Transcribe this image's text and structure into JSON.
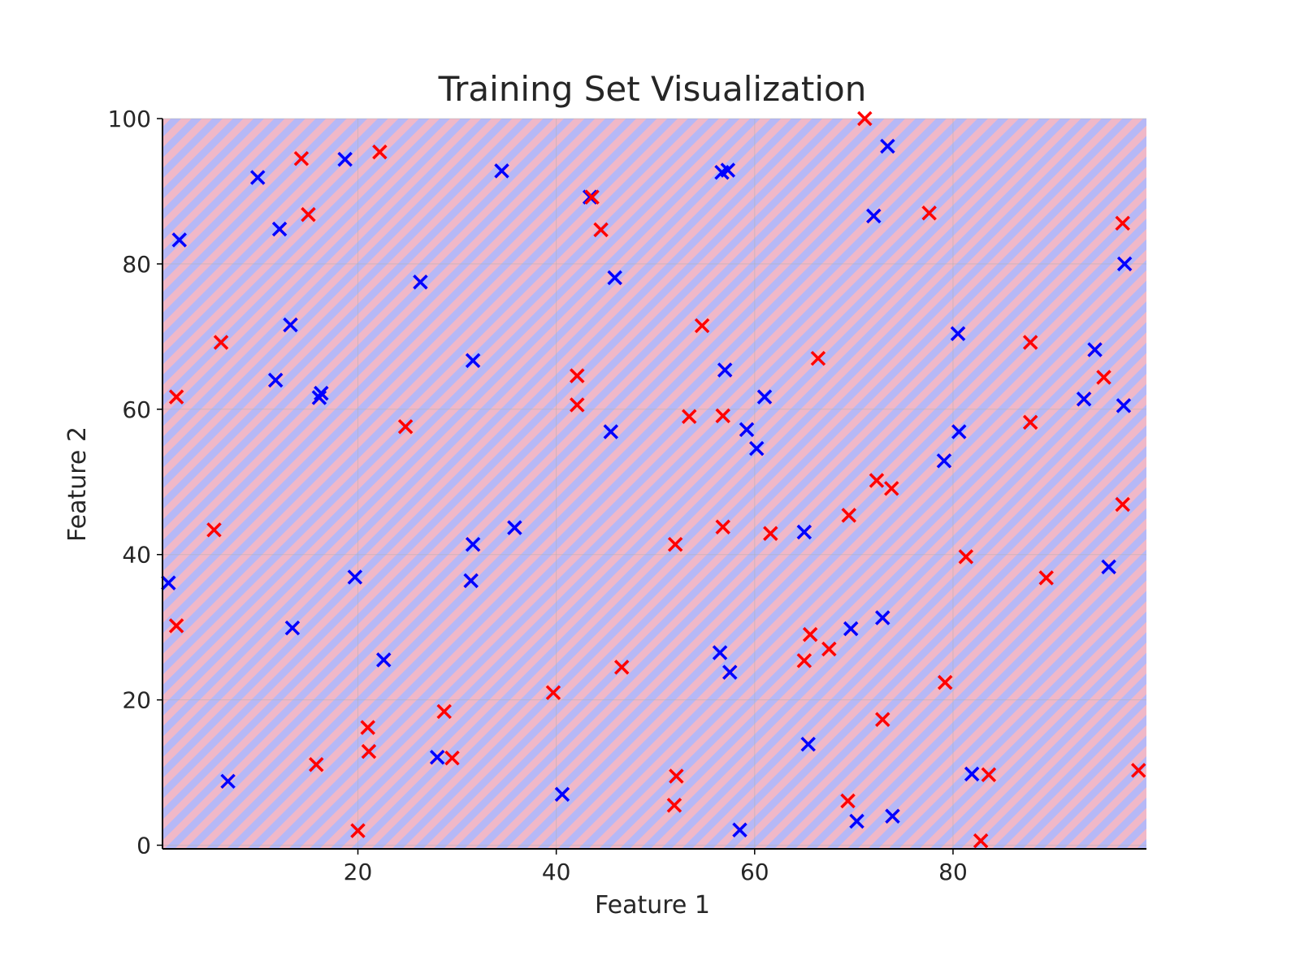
{
  "chart_data": {
    "type": "scatter",
    "title": "Training Set Visualization",
    "xlabel": "Feature 1",
    "ylabel": "Feature 2",
    "xlim": [
      0.3,
      99.5
    ],
    "ylim": [
      -0.5,
      100
    ],
    "x_ticks": [
      20,
      40,
      60,
      80
    ],
    "y_ticks": [
      0,
      20,
      40,
      60,
      80,
      100
    ],
    "grid": true,
    "marker": "x",
    "background": "diagonal stripes alternating red and blue",
    "colors": {
      "class_0": "#0000ff",
      "class_1": "#ff0000",
      "stripe_a": "#b6b8f6",
      "stripe_b": "#f0b8c8"
    },
    "series": [
      {
        "color": "#0000ff",
        "points": [
          [
            0.9,
            36.1
          ],
          [
            2.0,
            83.3
          ],
          [
            6.9,
            8.8
          ],
          [
            9.9,
            91.9
          ],
          [
            11.7,
            64.0
          ],
          [
            12.1,
            84.8
          ],
          [
            13.2,
            71.6
          ],
          [
            13.4,
            29.9
          ],
          [
            16.1,
            61.6
          ],
          [
            16.3,
            62.2
          ],
          [
            18.7,
            94.4
          ],
          [
            19.7,
            36.9
          ],
          [
            22.6,
            25.5
          ],
          [
            26.3,
            77.5
          ],
          [
            28.0,
            12.1
          ],
          [
            31.4,
            36.4
          ],
          [
            31.6,
            41.4
          ],
          [
            31.6,
            66.7
          ],
          [
            34.5,
            92.8
          ],
          [
            35.8,
            43.7
          ],
          [
            40.6,
            7.0
          ],
          [
            43.4,
            89.2
          ],
          [
            45.5,
            56.9
          ],
          [
            45.9,
            78.1
          ],
          [
            56.5,
            26.5
          ],
          [
            56.7,
            92.6
          ],
          [
            57.3,
            92.9
          ],
          [
            57.0,
            65.4
          ],
          [
            57.5,
            23.8
          ],
          [
            58.5,
            2.1
          ],
          [
            59.2,
            57.2
          ],
          [
            60.2,
            54.6
          ],
          [
            61.0,
            61.7
          ],
          [
            65.0,
            43.1
          ],
          [
            65.4,
            13.9
          ],
          [
            69.7,
            29.8
          ],
          [
            70.3,
            3.3
          ],
          [
            72.0,
            86.6
          ],
          [
            72.9,
            31.3
          ],
          [
            73.4,
            96.2
          ],
          [
            73.9,
            4.0
          ],
          [
            79.1,
            52.9
          ],
          [
            80.5,
            70.4
          ],
          [
            80.6,
            56.9
          ],
          [
            81.9,
            9.8
          ],
          [
            93.2,
            61.4
          ],
          [
            94.3,
            68.2
          ],
          [
            95.7,
            38.3
          ],
          [
            97.2,
            60.5
          ],
          [
            97.3,
            80.0
          ]
        ]
      },
      {
        "color": "#ff0000",
        "points": [
          [
            1.7,
            61.7
          ],
          [
            1.7,
            30.2
          ],
          [
            5.5,
            43.4
          ],
          [
            6.2,
            69.2
          ],
          [
            14.3,
            94.5
          ],
          [
            15.0,
            86.8
          ],
          [
            15.8,
            11.1
          ],
          [
            20.0,
            2.0
          ],
          [
            21.0,
            16.2
          ],
          [
            21.1,
            12.9
          ],
          [
            22.2,
            95.4
          ],
          [
            24.8,
            57.6
          ],
          [
            28.7,
            18.4
          ],
          [
            29.5,
            12.0
          ],
          [
            39.7,
            21.0
          ],
          [
            42.1,
            64.6
          ],
          [
            42.1,
            60.6
          ],
          [
            43.6,
            89.2
          ],
          [
            44.5,
            84.7
          ],
          [
            46.6,
            24.5
          ],
          [
            52.0,
            41.4
          ],
          [
            52.1,
            9.5
          ],
          [
            51.9,
            5.5
          ],
          [
            53.4,
            59.0
          ],
          [
            54.7,
            71.5
          ],
          [
            56.8,
            59.1
          ],
          [
            56.8,
            43.8
          ],
          [
            61.6,
            42.9
          ],
          [
            65.0,
            25.4
          ],
          [
            65.6,
            29.0
          ],
          [
            66.4,
            67.0
          ],
          [
            67.5,
            27.0
          ],
          [
            69.4,
            6.1
          ],
          [
            69.5,
            45.4
          ],
          [
            71.1,
            100.0
          ],
          [
            72.3,
            50.2
          ],
          [
            72.9,
            17.3
          ],
          [
            73.8,
            49.1
          ],
          [
            77.6,
            87.0
          ],
          [
            79.2,
            22.4
          ],
          [
            81.3,
            39.7
          ],
          [
            82.8,
            0.6
          ],
          [
            83.6,
            9.7
          ],
          [
            87.8,
            69.2
          ],
          [
            87.8,
            58.2
          ],
          [
            89.4,
            36.8
          ],
          [
            95.2,
            64.4
          ],
          [
            97.1,
            85.6
          ],
          [
            97.1,
            46.9
          ],
          [
            98.7,
            10.3
          ]
        ]
      }
    ]
  }
}
